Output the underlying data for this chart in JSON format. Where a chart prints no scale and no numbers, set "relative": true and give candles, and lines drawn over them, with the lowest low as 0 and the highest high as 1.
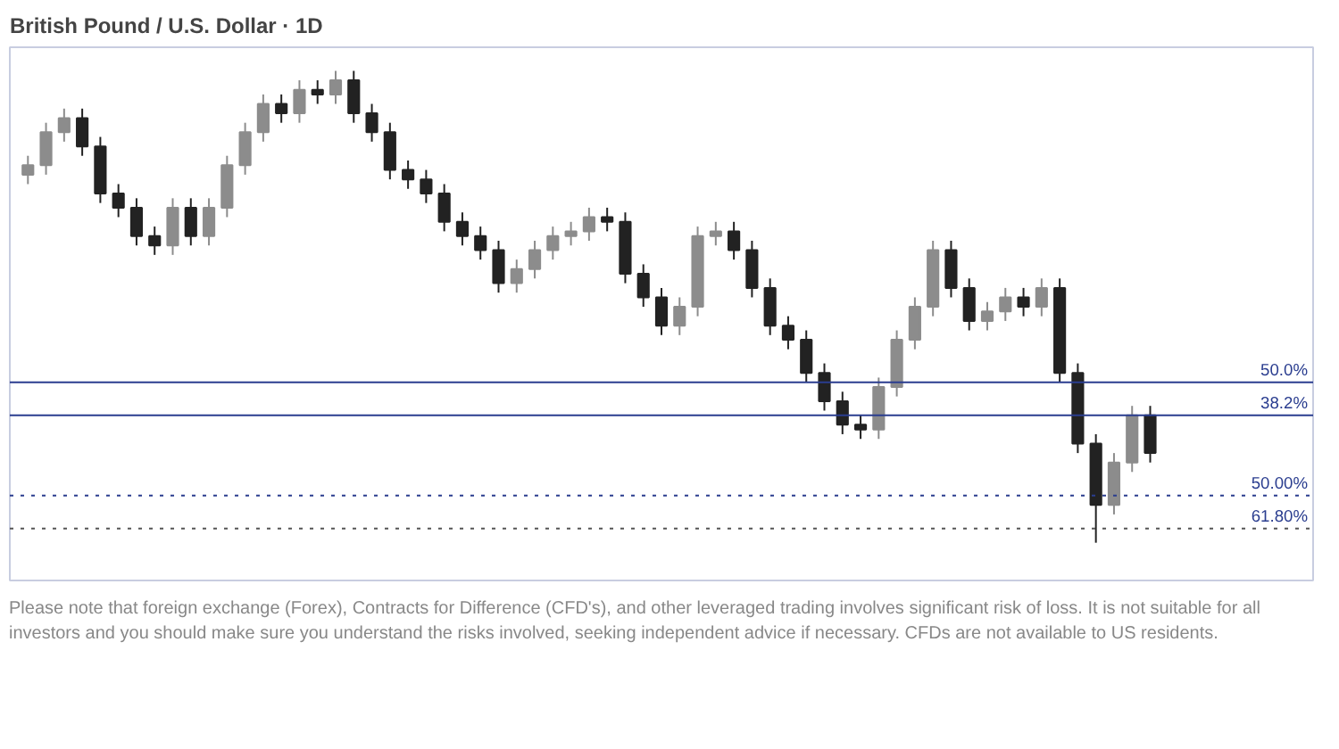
{
  "chart_data": {
    "type": "candlestick",
    "title": "British Pound / U.S. Dollar · 1D",
    "relative": true,
    "tick_labels": false,
    "grid": false,
    "categories": [
      null,
      null,
      null,
      null,
      null,
      null,
      null,
      null,
      null,
      null,
      null,
      null,
      null,
      null,
      null,
      null,
      null,
      null,
      null,
      null,
      null,
      null,
      null,
      null,
      null,
      null,
      null,
      null,
      null,
      null,
      null,
      null,
      null,
      null,
      null,
      null,
      null,
      null,
      null,
      null,
      null,
      null,
      null,
      null,
      null,
      null,
      null,
      null,
      null,
      null,
      null,
      null,
      null,
      null,
      null,
      null,
      null,
      null,
      null,
      null,
      null,
      null,
      null
    ],
    "colors": [
      "#8c8c8c",
      "#8c8c8c",
      "#8c8c8c",
      "#222222",
      "#222222",
      "#222222",
      "#222222",
      "#222222",
      "#8c8c8c",
      "#222222",
      "#8c8c8c",
      "#8c8c8c",
      "#8c8c8c",
      "#8c8c8c",
      "#222222",
      "#8c8c8c",
      "#222222",
      "#8c8c8c",
      "#222222",
      "#222222",
      "#222222",
      "#222222",
      "#222222",
      "#222222",
      "#222222",
      "#222222",
      "#222222",
      "#8c8c8c",
      "#8c8c8c",
      "#8c8c8c",
      "#8c8c8c",
      "#8c8c8c",
      "#222222",
      "#222222",
      "#222222",
      "#222222",
      "#8c8c8c",
      "#8c8c8c",
      "#8c8c8c",
      "#222222",
      "#222222",
      "#222222",
      "#222222",
      "#222222",
      "#222222",
      "#222222",
      "#222222",
      "#8c8c8c",
      "#8c8c8c",
      "#8c8c8c",
      "#8c8c8c",
      "#222222",
      "#222222",
      "#8c8c8c",
      "#8c8c8c",
      "#222222",
      "#8c8c8c",
      "#222222",
      "#222222",
      "#222222",
      "#8c8c8c",
      "#8c8c8c",
      "#222222"
    ],
    "ohlc": [
      [
        0.78,
        0.82,
        0.76,
        0.8
      ],
      [
        0.8,
        0.89,
        0.78,
        0.87
      ],
      [
        0.87,
        0.92,
        0.85,
        0.9
      ],
      [
        0.9,
        0.92,
        0.82,
        0.84
      ],
      [
        0.84,
        0.86,
        0.72,
        0.74
      ],
      [
        0.74,
        0.76,
        0.69,
        0.71
      ],
      [
        0.71,
        0.73,
        0.63,
        0.65
      ],
      [
        0.65,
        0.67,
        0.61,
        0.63
      ],
      [
        0.63,
        0.73,
        0.61,
        0.71
      ],
      [
        0.71,
        0.73,
        0.63,
        0.65
      ],
      [
        0.65,
        0.73,
        0.63,
        0.71
      ],
      [
        0.71,
        0.82,
        0.69,
        0.8
      ],
      [
        0.8,
        0.89,
        0.78,
        0.87
      ],
      [
        0.87,
        0.95,
        0.85,
        0.93
      ],
      [
        0.93,
        0.95,
        0.89,
        0.91
      ],
      [
        0.91,
        0.98,
        0.89,
        0.96
      ],
      [
        0.96,
        0.98,
        0.93,
        0.95
      ],
      [
        0.95,
        1.0,
        0.93,
        0.98
      ],
      [
        0.98,
        1.0,
        0.89,
        0.91
      ],
      [
        0.91,
        0.93,
        0.85,
        0.87
      ],
      [
        0.87,
        0.89,
        0.77,
        0.79
      ],
      [
        0.79,
        0.81,
        0.75,
        0.77
      ],
      [
        0.77,
        0.79,
        0.72,
        0.74
      ],
      [
        0.74,
        0.76,
        0.66,
        0.68
      ],
      [
        0.68,
        0.7,
        0.63,
        0.65
      ],
      [
        0.65,
        0.67,
        0.6,
        0.62
      ],
      [
        0.62,
        0.64,
        0.53,
        0.55
      ],
      [
        0.55,
        0.6,
        0.53,
        0.58
      ],
      [
        0.58,
        0.64,
        0.56,
        0.62
      ],
      [
        0.62,
        0.67,
        0.6,
        0.65
      ],
      [
        0.65,
        0.68,
        0.63,
        0.66
      ],
      [
        0.66,
        0.71,
        0.64,
        0.69
      ],
      [
        0.69,
        0.71,
        0.66,
        0.68
      ],
      [
        0.68,
        0.7,
        0.55,
        0.57
      ],
      [
        0.57,
        0.59,
        0.5,
        0.52
      ],
      [
        0.52,
        0.54,
        0.44,
        0.46
      ],
      [
        0.46,
        0.52,
        0.44,
        0.5
      ],
      [
        0.5,
        0.67,
        0.48,
        0.65
      ],
      [
        0.65,
        0.68,
        0.63,
        0.66
      ],
      [
        0.66,
        0.68,
        0.6,
        0.62
      ],
      [
        0.62,
        0.64,
        0.52,
        0.54
      ],
      [
        0.54,
        0.56,
        0.44,
        0.46
      ],
      [
        0.46,
        0.48,
        0.41,
        0.43
      ],
      [
        0.43,
        0.45,
        0.34,
        0.36
      ],
      [
        0.36,
        0.38,
        0.28,
        0.3
      ],
      [
        0.3,
        0.32,
        0.23,
        0.25
      ],
      [
        0.25,
        0.27,
        0.22,
        0.24
      ],
      [
        0.24,
        0.35,
        0.22,
        0.33
      ],
      [
        0.33,
        0.45,
        0.31,
        0.43
      ],
      [
        0.43,
        0.52,
        0.41,
        0.5
      ],
      [
        0.5,
        0.64,
        0.48,
        0.62
      ],
      [
        0.62,
        0.64,
        0.52,
        0.54
      ],
      [
        0.54,
        0.56,
        0.45,
        0.47
      ],
      [
        0.47,
        0.51,
        0.45,
        0.49
      ],
      [
        0.49,
        0.54,
        0.47,
        0.52
      ],
      [
        0.52,
        0.54,
        0.48,
        0.5
      ],
      [
        0.5,
        0.56,
        0.48,
        0.54
      ],
      [
        0.54,
        0.56,
        0.34,
        0.36
      ],
      [
        0.36,
        0.38,
        0.19,
        0.21
      ],
      [
        0.21,
        0.23,
        0.0,
        0.08
      ],
      [
        0.08,
        0.19,
        0.06,
        0.17
      ],
      [
        0.17,
        0.29,
        0.15,
        0.27
      ],
      [
        0.27,
        0.29,
        0.17,
        0.19
      ]
    ],
    "ref_lines": [
      {
        "axis": "y",
        "value": 0.34,
        "color": "#2a3d8f"
      },
      {
        "axis": "y",
        "value": 0.27,
        "color": "#2a3d8f"
      },
      {
        "axis": "y",
        "value": 0.1,
        "color": "#2a3d8f",
        "line_style": "dotted"
      },
      {
        "axis": "y",
        "value": 0.03,
        "color": "#555555",
        "line_style": "dotted"
      }
    ],
    "annotations": [
      {
        "text": "50.0%",
        "y": 0.34
      },
      {
        "text": "38.2%",
        "y": 0.27
      },
      {
        "text": "50.00%",
        "y": 0.1
      },
      {
        "text": "61.80%",
        "y": 0.03
      },
      "Please note that foreign exchange (Forex), Contracts for Difference (CFD's), and other leveraged trading involves significant risk of loss. It is not suitable for all investors and you should make sure you understand the risks involved, seeking independent advice if necessary. CFDs are not available to US residents."
    ]
  }
}
